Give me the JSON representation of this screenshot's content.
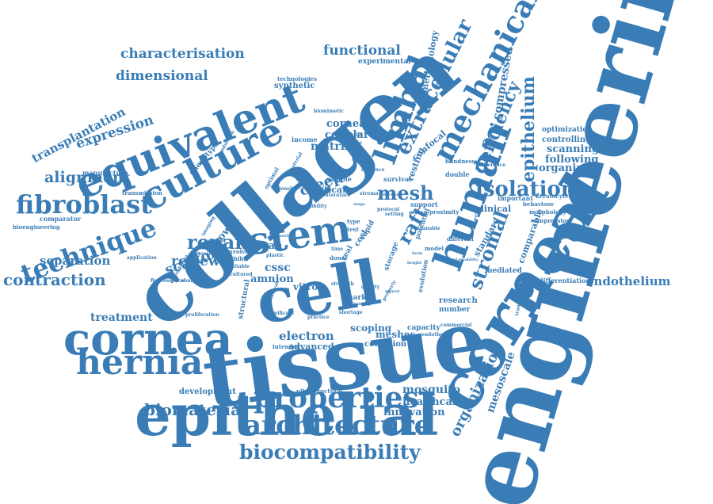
{
  "colors": {
    "word": "#3a7db6",
    "background": "#ffffff"
  },
  "words": {
    "engineering": "engineering",
    "collagen": "collagen",
    "tissue": "tissue",
    "cell": "cell",
    "epithelial": "epithelial",
    "corneal": "corneal",
    "cornea": "cornea",
    "hernia": "hernia",
    "equivalent": "equivalent",
    "culture": "culture",
    "stem": "stem",
    "human": "human",
    "limbal": "limbal",
    "mechanical": "mechanical",
    "extracellular": "extracellular",
    "fibroblast": "fibroblast",
    "technique": "technique",
    "properties": "properties",
    "architecture": "architecture",
    "biocompatibility": "biocompatibility",
    "biomaterial": "biomaterial",
    "contraction": "contraction",
    "characterisation": "characterisation",
    "dimensional": "dimensional",
    "functional": "functional",
    "expression": "expression",
    "transplantation": "transplantation",
    "alignment": "alignment",
    "separation": "separation",
    "repair": "repair",
    "scaffold": "scaffold",
    "review": "review",
    "mesh": "mesh",
    "raft": "raft",
    "isolation": "isolation",
    "epithelium": "epithelium",
    "deficiency": "deficiency",
    "stromal": "stromal",
    "organization": "organization",
    "mesoscale": "mesoscale",
    "endothelium": "endothelium",
    "creep": "creep",
    "matrix": "matrix",
    "cellular": "cellular",
    "corneae": "corneae",
    "organized": "organized",
    "mosquito": "mosquito",
    "healthcare": "healthcare",
    "innovation": "innovation",
    "electron": "electron",
    "advanced": "advanced",
    "scoping": "scoping",
    "meshes": "meshes",
    "treatment": "treatment",
    "development": "development",
    "compressed": "compressed",
    "scanning": "scanning",
    "following": "following",
    "controlling": "controlling",
    "optimization": "optimization",
    "methodology": "methodology",
    "experimental": "experimental",
    "synthetic": "synthetic",
    "technologies": "technologies",
    "manufacture": "manufacture",
    "comparator": "comparator",
    "bioengineering": "bioengineering",
    "transmission": "transmission",
    "application": "application",
    "cssc": "cssc",
    "amnion": "amnion",
    "growth": "growth",
    "organ": "organ",
    "vitro": "vitro",
    "optical": "optical",
    "resting": "resting",
    "confocal": "confocal",
    "research": "research",
    "number": "number",
    "marker": "marker",
    "capacity": "capacity",
    "condition": "condition",
    "intended": "intended",
    "ultrastructural": "ultrastructural",
    "structural": "structural",
    "mediated": "mediated",
    "differentiation": "differentiation",
    "clinical": "clinical",
    "standard": "standard",
    "comparable": "comparable",
    "important": "important",
    "morphology": "morphology",
    "compression": "compression",
    "keratocytes": "keratocytes",
    "phenotype": "phenotype",
    "income": "income",
    "sample": "sample",
    "survival": "survival",
    "stroma": "stroma",
    "double": "double",
    "different": "different",
    "model": "model",
    "donor": "donor",
    "storage": "storage",
    "potential": "potential",
    "support": "support",
    "proximity": "proximity",
    "fluorescence": "fluorescence",
    "abnormal": "abnormal",
    "available": "available",
    "involve": "involve",
    "exhibit": "exhibit",
    "suitable": "suitable",
    "cultured": "cultured",
    "proliferation": "proliferation",
    "significant": "significant",
    "shortage": "shortage",
    "endothelial": "endothelial",
    "commercial": "commercial",
    "evolution": "evolution",
    "transparency": "transparency",
    "cost": "cost",
    "rapid": "rapid",
    "real": "real",
    "type": "type",
    "test": "test",
    "identify": "identify",
    "biomimetic": "biomimetic",
    "mediate": "mediate",
    "blindness": "blindness",
    "difference": "difference",
    "behaviour": "behaviour",
    "density": "density",
    "material": "material",
    "production": "production",
    "imaging": "imaging",
    "isolated": "isolated",
    "degradation": "degradation",
    "cssc2": "cssc",
    "plastic": "plastic",
    "time": "time",
    "retrieval": "retrieval",
    "practice": "practice",
    "literature": "literature",
    "visibility": "visibility",
    "protocol": "protocol",
    "quality": "quality",
    "property": "property",
    "holding": "holding",
    "evidence": "evidence",
    "effective": "effective",
    "setting": "setting",
    "tunable": "tunable",
    "height": "height",
    "surface": "surface",
    "colony": "colony",
    "strength": "strength",
    "sustainability": "sustainability",
    "environment": "environment",
    "neural": "neural",
    "useful": "useful",
    "stage": "stage",
    "form": "form",
    "optimal": "optimal"
  }
}
